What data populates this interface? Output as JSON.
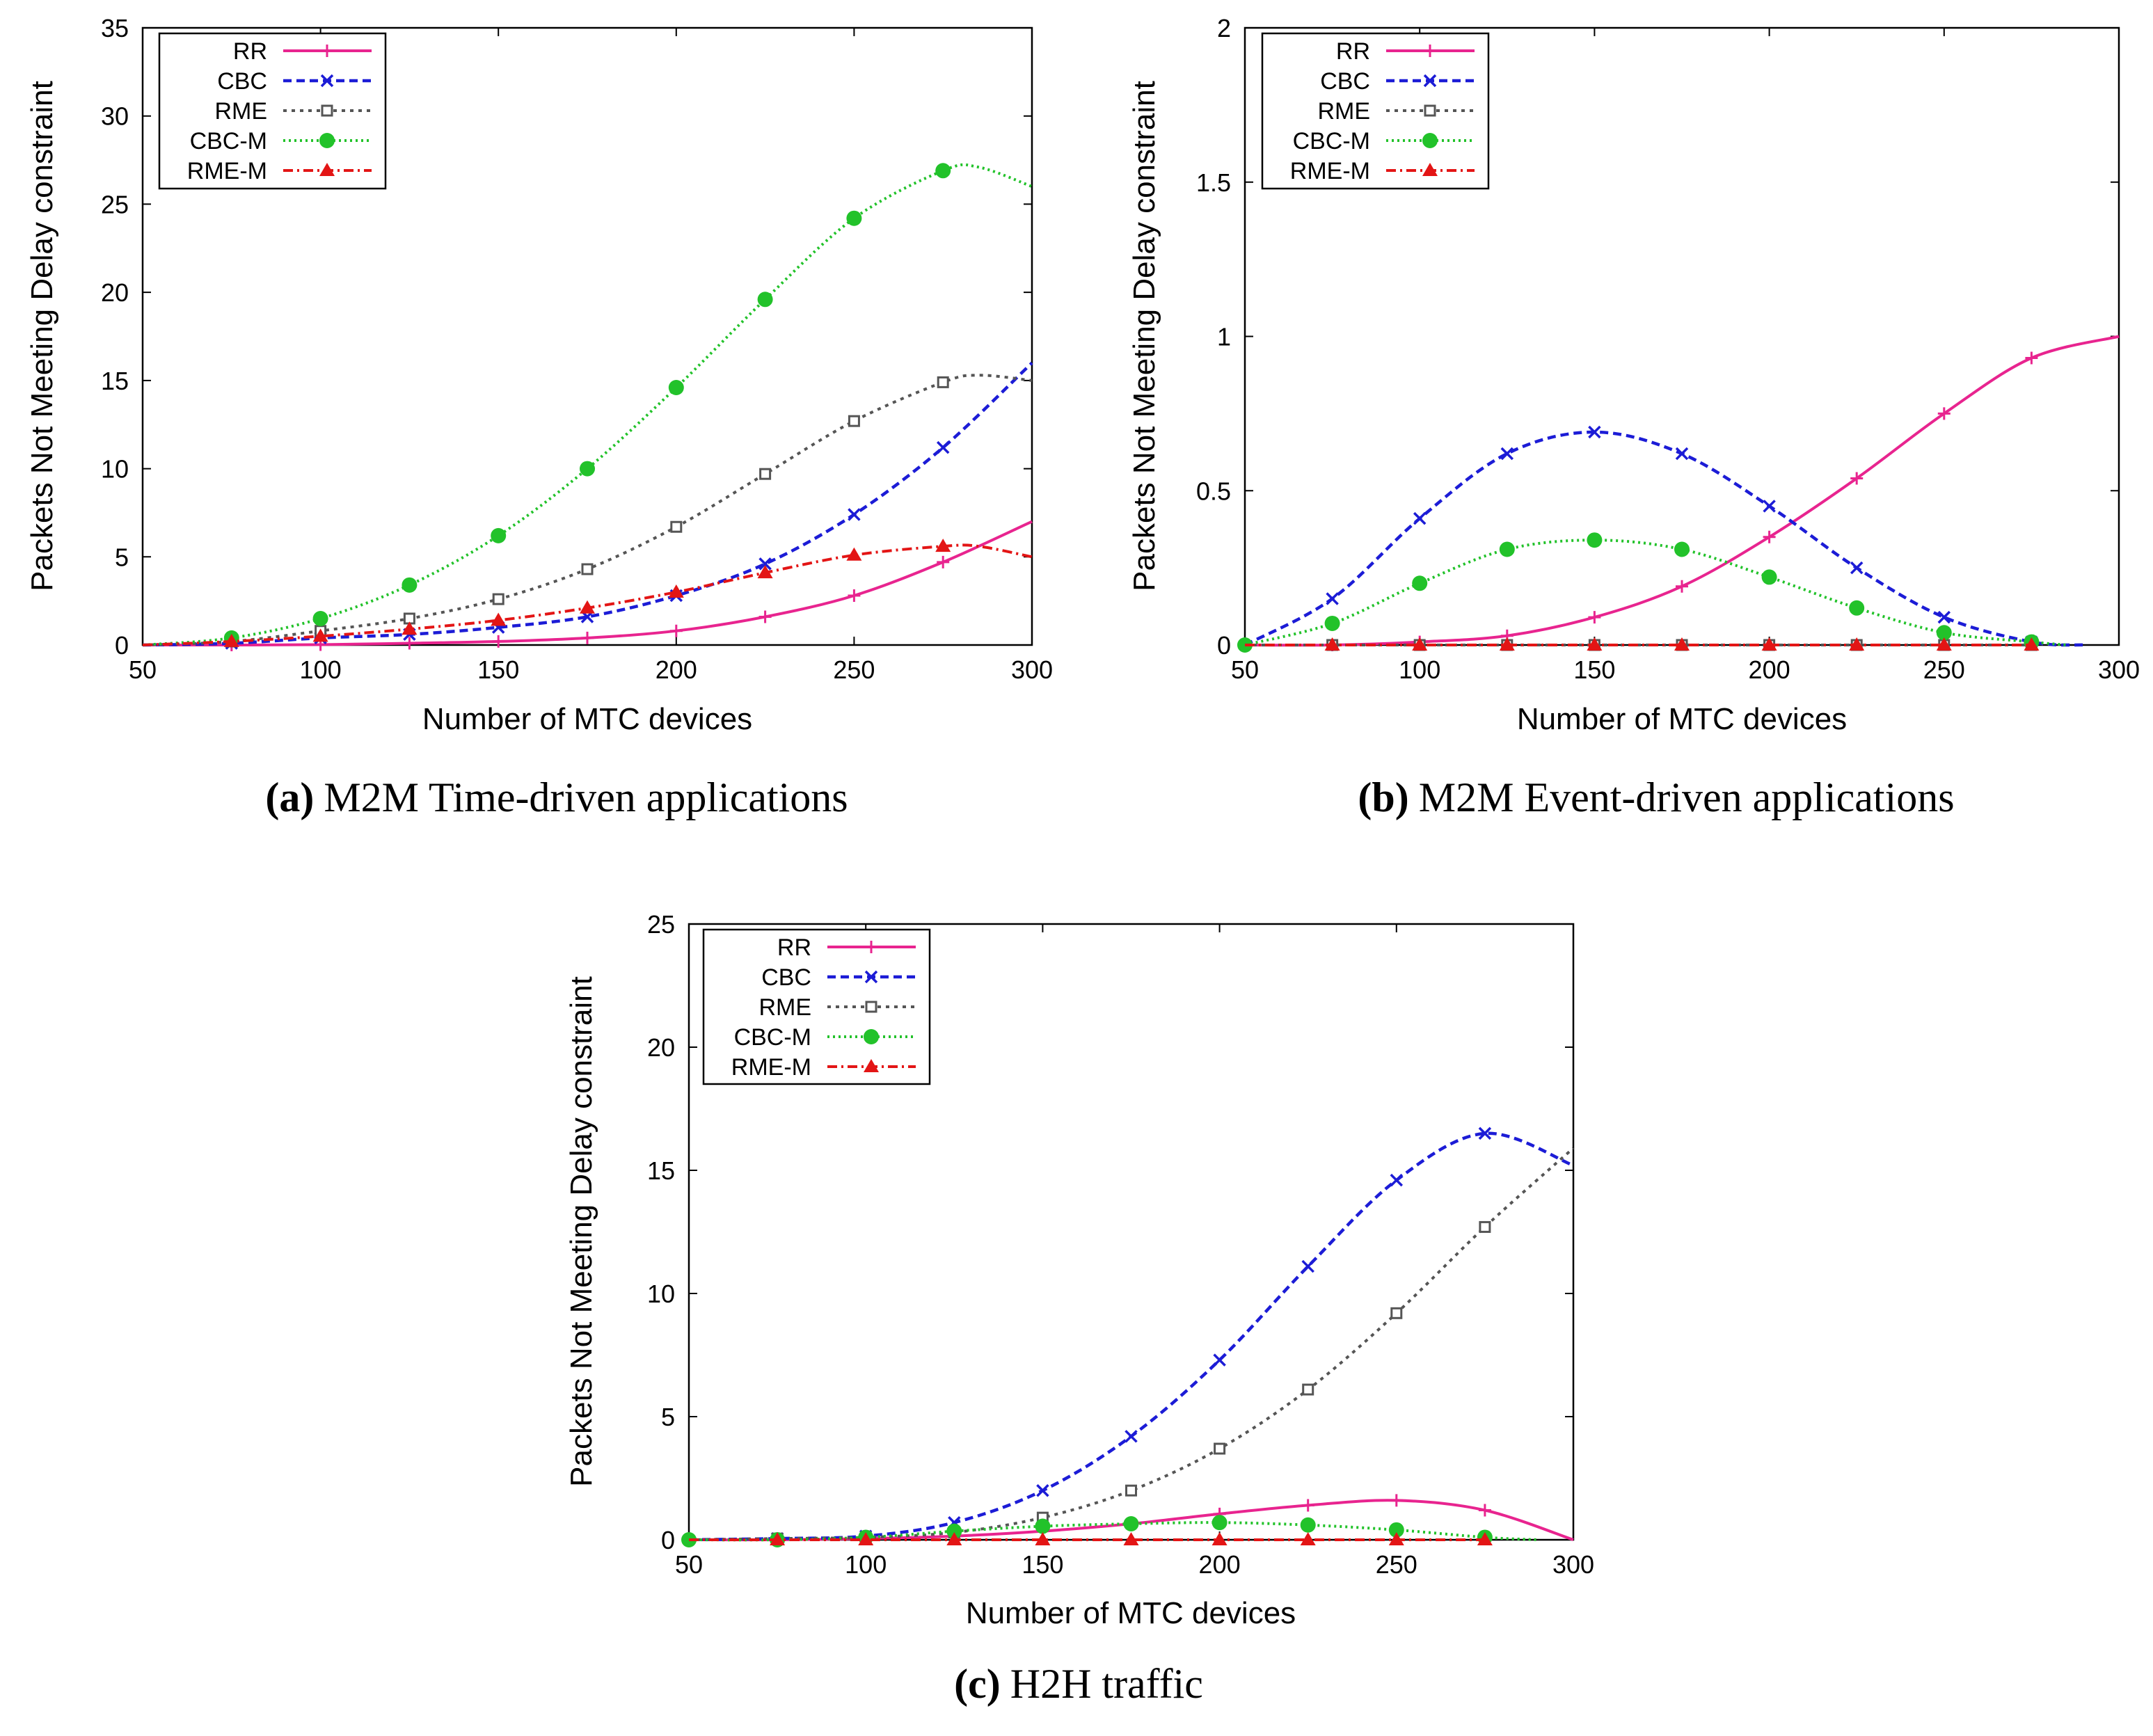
{
  "styles": {
    "RR": {
      "color": "#e8248f",
      "dash": "",
      "marker": "plus",
      "width": 4
    },
    "CBC": {
      "color": "#1c1cd6",
      "dash": "12 7",
      "marker": "x",
      "width": 4.5
    },
    "RME": {
      "color": "#555555",
      "dash": "5 7",
      "marker": "opensq",
      "width": 4
    },
    "CBC-M": {
      "color": "#22c22a",
      "dash": "3 5",
      "marker": "circle",
      "width": 4
    },
    "RME-M": {
      "color": "#e31515",
      "dash": "14 6 3 6",
      "marker": "triangle",
      "width": 4
    }
  },
  "chart_data": [
    {
      "type": "line",
      "panel": "a",
      "caption_label": "(a)",
      "caption_text": "M2M Time-driven applications",
      "xlabel": "Number of MTC devices",
      "ylabel": "Packets Not Meeting Delay constraint",
      "xlim": [
        50,
        300
      ],
      "ylim": [
        0,
        35
      ],
      "xticks": [
        50,
        100,
        150,
        200,
        250,
        300
      ],
      "yticks": [
        0,
        5,
        10,
        15,
        20,
        25,
        30,
        35
      ],
      "yticklabels": [
        "0",
        "5",
        "10",
        "15",
        "20",
        "25",
        "30",
        "35"
      ],
      "legend": [
        "RR",
        "CBC",
        "RME",
        "CBC-M",
        "RME-M"
      ],
      "legend_position": "top-left",
      "series": [
        {
          "name": "RR",
          "x": [
            50,
            75,
            100,
            125,
            150,
            175,
            200,
            225,
            250,
            275,
            300
          ],
          "values": [
            0,
            0,
            0.02,
            0.1,
            0.2,
            0.4,
            0.8,
            1.6,
            2.8,
            4.7,
            7.0
          ],
          "marked": [
            false,
            true,
            true,
            true,
            true,
            true,
            true,
            true,
            true,
            true,
            false
          ]
        },
        {
          "name": "CBC",
          "x": [
            50,
            75,
            100,
            125,
            150,
            175,
            200,
            225,
            250,
            275,
            300
          ],
          "values": [
            0,
            0.1,
            0.4,
            0.6,
            1.0,
            1.6,
            2.8,
            4.6,
            7.4,
            11.2,
            16.0
          ],
          "marked": [
            false,
            true,
            true,
            true,
            true,
            true,
            true,
            true,
            true,
            true,
            false
          ]
        },
        {
          "name": "RME",
          "x": [
            50,
            75,
            100,
            125,
            150,
            175,
            200,
            225,
            250,
            275,
            285,
            300
          ],
          "values": [
            0,
            0.2,
            0.8,
            1.5,
            2.6,
            4.3,
            6.7,
            9.7,
            12.7,
            14.9,
            15.3,
            15.0
          ],
          "marked": [
            false,
            true,
            true,
            true,
            true,
            true,
            true,
            true,
            true,
            true,
            false,
            false
          ]
        },
        {
          "name": "CBC-M",
          "x": [
            50,
            75,
            100,
            125,
            150,
            175,
            200,
            225,
            250,
            275,
            285,
            300
          ],
          "values": [
            0,
            0.4,
            1.5,
            3.4,
            6.2,
            10.0,
            14.6,
            19.6,
            24.2,
            26.9,
            27.1,
            26.0
          ],
          "marked": [
            false,
            true,
            true,
            true,
            true,
            true,
            true,
            true,
            true,
            true,
            false,
            false
          ]
        },
        {
          "name": "RME-M",
          "x": [
            50,
            75,
            100,
            125,
            150,
            175,
            200,
            225,
            250,
            275,
            285,
            300
          ],
          "values": [
            0,
            0.2,
            0.5,
            0.9,
            1.4,
            2.1,
            3.0,
            4.1,
            5.1,
            5.6,
            5.6,
            5.0
          ],
          "marked": [
            false,
            true,
            true,
            true,
            true,
            true,
            true,
            true,
            true,
            true,
            false,
            false
          ]
        }
      ]
    },
    {
      "type": "line",
      "panel": "b",
      "caption_label": "(b)",
      "caption_text": "M2M Event-driven applications",
      "xlabel": "Number of MTC devices",
      "ylabel": "Packets Not Meeting Delay constraint",
      "xlim": [
        50,
        300
      ],
      "ylim": [
        0,
        2
      ],
      "xticks": [
        50,
        100,
        150,
        200,
        250,
        300
      ],
      "yticks": [
        0,
        0.5,
        1,
        1.5,
        2
      ],
      "yticklabels": [
        "0",
        "0.5",
        "1",
        "1.5",
        "2"
      ],
      "legend": [
        "RR",
        "CBC",
        "RME",
        "CBC-M",
        "RME-M"
      ],
      "legend_position": "top-left",
      "series": [
        {
          "name": "RR",
          "x": [
            50,
            75,
            100,
            125,
            150,
            175,
            200,
            225,
            250,
            275,
            300
          ],
          "values": [
            0,
            0,
            0.01,
            0.03,
            0.09,
            0.19,
            0.35,
            0.54,
            0.75,
            0.93,
            1.0
          ],
          "marked": [
            false,
            true,
            true,
            true,
            true,
            true,
            true,
            true,
            true,
            true,
            false
          ]
        },
        {
          "name": "CBC",
          "x": [
            50,
            75,
            100,
            125,
            150,
            175,
            200,
            225,
            250,
            275,
            290
          ],
          "values": [
            0,
            0.15,
            0.41,
            0.62,
            0.69,
            0.62,
            0.45,
            0.25,
            0.09,
            0.01,
            0
          ],
          "marked": [
            false,
            true,
            true,
            true,
            true,
            true,
            true,
            true,
            true,
            true,
            false
          ]
        },
        {
          "name": "RME",
          "x": [
            50,
            75,
            100,
            125,
            150,
            175,
            200,
            225,
            250,
            275
          ],
          "values": [
            0,
            0,
            0,
            0,
            0,
            0,
            0,
            0,
            0,
            0
          ],
          "marked": [
            false,
            true,
            true,
            true,
            true,
            true,
            true,
            true,
            true,
            true
          ]
        },
        {
          "name": "CBC-M",
          "x": [
            50,
            75,
            100,
            125,
            150,
            175,
            200,
            225,
            250,
            275,
            285
          ],
          "values": [
            0,
            0.07,
            0.2,
            0.31,
            0.34,
            0.31,
            0.22,
            0.12,
            0.04,
            0.01,
            0
          ],
          "marked": [
            true,
            true,
            true,
            true,
            true,
            true,
            true,
            true,
            true,
            true,
            false
          ]
        },
        {
          "name": "RME-M",
          "x": [
            50,
            75,
            100,
            125,
            150,
            175,
            200,
            225,
            250,
            275
          ],
          "values": [
            0,
            0,
            0,
            0,
            0,
            0,
            0,
            0,
            0,
            0
          ],
          "marked": [
            false,
            true,
            true,
            true,
            true,
            true,
            true,
            true,
            true,
            true
          ]
        }
      ]
    },
    {
      "type": "line",
      "panel": "c",
      "caption_label": "(c)",
      "caption_text": "H2H traffic",
      "xlabel": "Number of MTC devices",
      "ylabel": "Packets Not Meeting Delay constraint",
      "xlim": [
        50,
        300
      ],
      "ylim": [
        0,
        25
      ],
      "xticks": [
        50,
        100,
        150,
        200,
        250,
        300
      ],
      "yticks": [
        0,
        5,
        10,
        15,
        20,
        25
      ],
      "yticklabels": [
        "0",
        "5",
        "10",
        "15",
        "20",
        "25"
      ],
      "legend": [
        "RR",
        "CBC",
        "RME",
        "CBC-M",
        "RME-M"
      ],
      "legend_position": "top-left",
      "series": [
        {
          "name": "RR",
          "x": [
            50,
            75,
            100,
            125,
            150,
            175,
            200,
            225,
            250,
            275,
            300
          ],
          "values": [
            0,
            0,
            0.05,
            0.15,
            0.35,
            0.65,
            1.05,
            1.4,
            1.6,
            1.2,
            0
          ],
          "marked": [
            false,
            true,
            true,
            true,
            true,
            true,
            true,
            true,
            true,
            true,
            false
          ]
        },
        {
          "name": "CBC",
          "x": [
            50,
            75,
            100,
            125,
            150,
            175,
            200,
            225,
            250,
            275,
            300
          ],
          "values": [
            0,
            0.05,
            0.15,
            0.7,
            2.0,
            4.2,
            7.3,
            11.1,
            14.6,
            16.5,
            15.2
          ],
          "marked": [
            false,
            true,
            true,
            true,
            true,
            true,
            true,
            true,
            true,
            true,
            false
          ]
        },
        {
          "name": "RME",
          "x": [
            50,
            75,
            100,
            125,
            150,
            175,
            200,
            225,
            250,
            275,
            300
          ],
          "values": [
            0,
            0.05,
            0.1,
            0.3,
            0.9,
            2.0,
            3.7,
            6.1,
            9.2,
            12.7,
            15.9
          ],
          "marked": [
            false,
            true,
            true,
            true,
            true,
            true,
            true,
            true,
            true,
            true,
            false
          ]
        },
        {
          "name": "CBC-M",
          "x": [
            50,
            75,
            100,
            125,
            150,
            175,
            200,
            225,
            250,
            275,
            290
          ],
          "values": [
            0,
            0,
            0.1,
            0.35,
            0.55,
            0.65,
            0.7,
            0.6,
            0.4,
            0.1,
            0
          ],
          "marked": [
            true,
            true,
            true,
            true,
            true,
            true,
            true,
            true,
            true,
            true,
            false
          ]
        },
        {
          "name": "RME-M",
          "x": [
            50,
            75,
            100,
            125,
            150,
            175,
            200,
            225,
            250,
            275
          ],
          "values": [
            0,
            0,
            0,
            0,
            0,
            0,
            0,
            0,
            0,
            0
          ],
          "marked": [
            false,
            true,
            true,
            true,
            true,
            true,
            true,
            true,
            true,
            true
          ]
        }
      ]
    }
  ]
}
